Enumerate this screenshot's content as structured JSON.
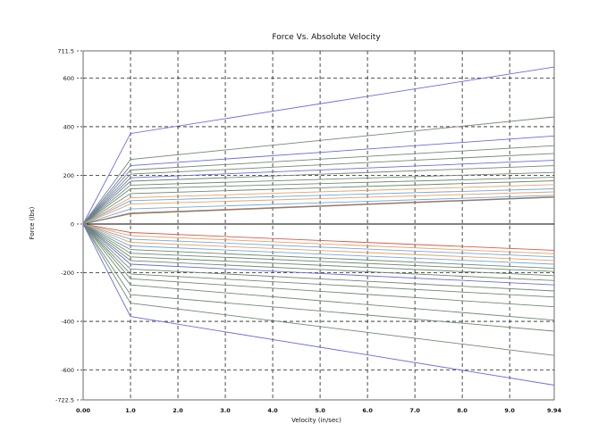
{
  "chart_data": {
    "type": "line",
    "title": "Force Vs. Absolute Velocity",
    "xlabel": "Velocity (in/sec)",
    "ylabel": "Force (lbs)",
    "xlim": [
      0.0,
      9.94
    ],
    "ylim": [
      -722.5,
      711.5
    ],
    "x_ticks": [
      0.0,
      1.0,
      2.0,
      3.0,
      4.0,
      5.0,
      6.0,
      7.0,
      8.0,
      9.0,
      9.94
    ],
    "x_tick_labels": [
      "0.00",
      "1.0",
      "2.0",
      "3.0",
      "4.0",
      "5.0",
      "6.0",
      "7.0",
      "8.0",
      "9.0",
      "9.94"
    ],
    "y_ticks": [
      -722.5,
      -600,
      -400,
      -200,
      0,
      200,
      400,
      600,
      711.5
    ],
    "y_tick_labels": [
      "-722.5",
      "-600",
      "-400",
      "-200",
      "0",
      "200",
      "400",
      "600",
      "711.5"
    ],
    "grid": true,
    "x_points": [
      0.0,
      1.0,
      9.94
    ],
    "series": [
      {
        "values": [
          0,
          372,
          645
        ],
        "color": "#6b6be0"
      },
      {
        "values": [
          0,
          265,
          440
        ],
        "color": "#6f8a72"
      },
      {
        "values": [
          0,
          240,
          362
        ],
        "color": "#6b6be0"
      },
      {
        "values": [
          0,
          222,
          322
        ],
        "color": "#6f8a72"
      },
      {
        "values": [
          0,
          205,
          290
        ],
        "color": "#6f8a72"
      },
      {
        "values": [
          0,
          190,
          262
        ],
        "color": "#6b6be0"
      },
      {
        "values": [
          0,
          176,
          240
        ],
        "color": "#6f8a72"
      },
      {
        "values": [
          0,
          160,
          212
        ],
        "color": "#6f8a72"
      },
      {
        "values": [
          0,
          145,
          192
        ],
        "color": "#6f8a72"
      },
      {
        "values": [
          0,
          125,
          178
        ],
        "color": "#6f8a72"
      },
      {
        "values": [
          0,
          108,
          162
        ],
        "color": "#e8a060"
      },
      {
        "values": [
          0,
          96,
          145
        ],
        "color": "#6fa8e0"
      },
      {
        "values": [
          0,
          82,
          132
        ],
        "color": "#e8a060"
      },
      {
        "values": [
          0,
          62,
          118
        ],
        "color": "#6fa8e0"
      },
      {
        "values": [
          0,
          45,
          112
        ],
        "color": "#d85a4a"
      },
      {
        "values": [
          0,
          42,
          110
        ],
        "color": "#6f8a72"
      },
      {
        "values": [
          0,
          -35,
          -108
        ],
        "color": "#d85a4a"
      },
      {
        "values": [
          0,
          -48,
          -122
        ],
        "color": "#e8a060"
      },
      {
        "values": [
          0,
          -62,
          -135
        ],
        "color": "#6fa8e0"
      },
      {
        "values": [
          0,
          -75,
          -150
        ],
        "color": "#e8a060"
      },
      {
        "values": [
          0,
          -90,
          -165
        ],
        "color": "#6fa8e0"
      },
      {
        "values": [
          0,
          -105,
          -182
        ],
        "color": "#6f8a72"
      },
      {
        "values": [
          0,
          -120,
          -195
        ],
        "color": "#6f8a72"
      },
      {
        "values": [
          0,
          -135,
          -212
        ],
        "color": "#6f8a72"
      },
      {
        "values": [
          0,
          -150,
          -232
        ],
        "color": "#6f8a72"
      },
      {
        "values": [
          0,
          -165,
          -250
        ],
        "color": "#6b6be0"
      },
      {
        "values": [
          0,
          -185,
          -275
        ],
        "color": "#6f8a72"
      },
      {
        "values": [
          0,
          -205,
          -300
        ],
        "color": "#6f8a72"
      },
      {
        "values": [
          0,
          -225,
          -340
        ],
        "color": "#6f8a72"
      },
      {
        "values": [
          0,
          -250,
          -395
        ],
        "color": "#6f8a72"
      },
      {
        "values": [
          0,
          -290,
          -440
        ],
        "color": "#6f8a72"
      },
      {
        "values": [
          0,
          -325,
          -540
        ],
        "color": "#6f8a72"
      },
      {
        "values": [
          0,
          -380,
          -662
        ],
        "color": "#6b6be0"
      }
    ]
  }
}
